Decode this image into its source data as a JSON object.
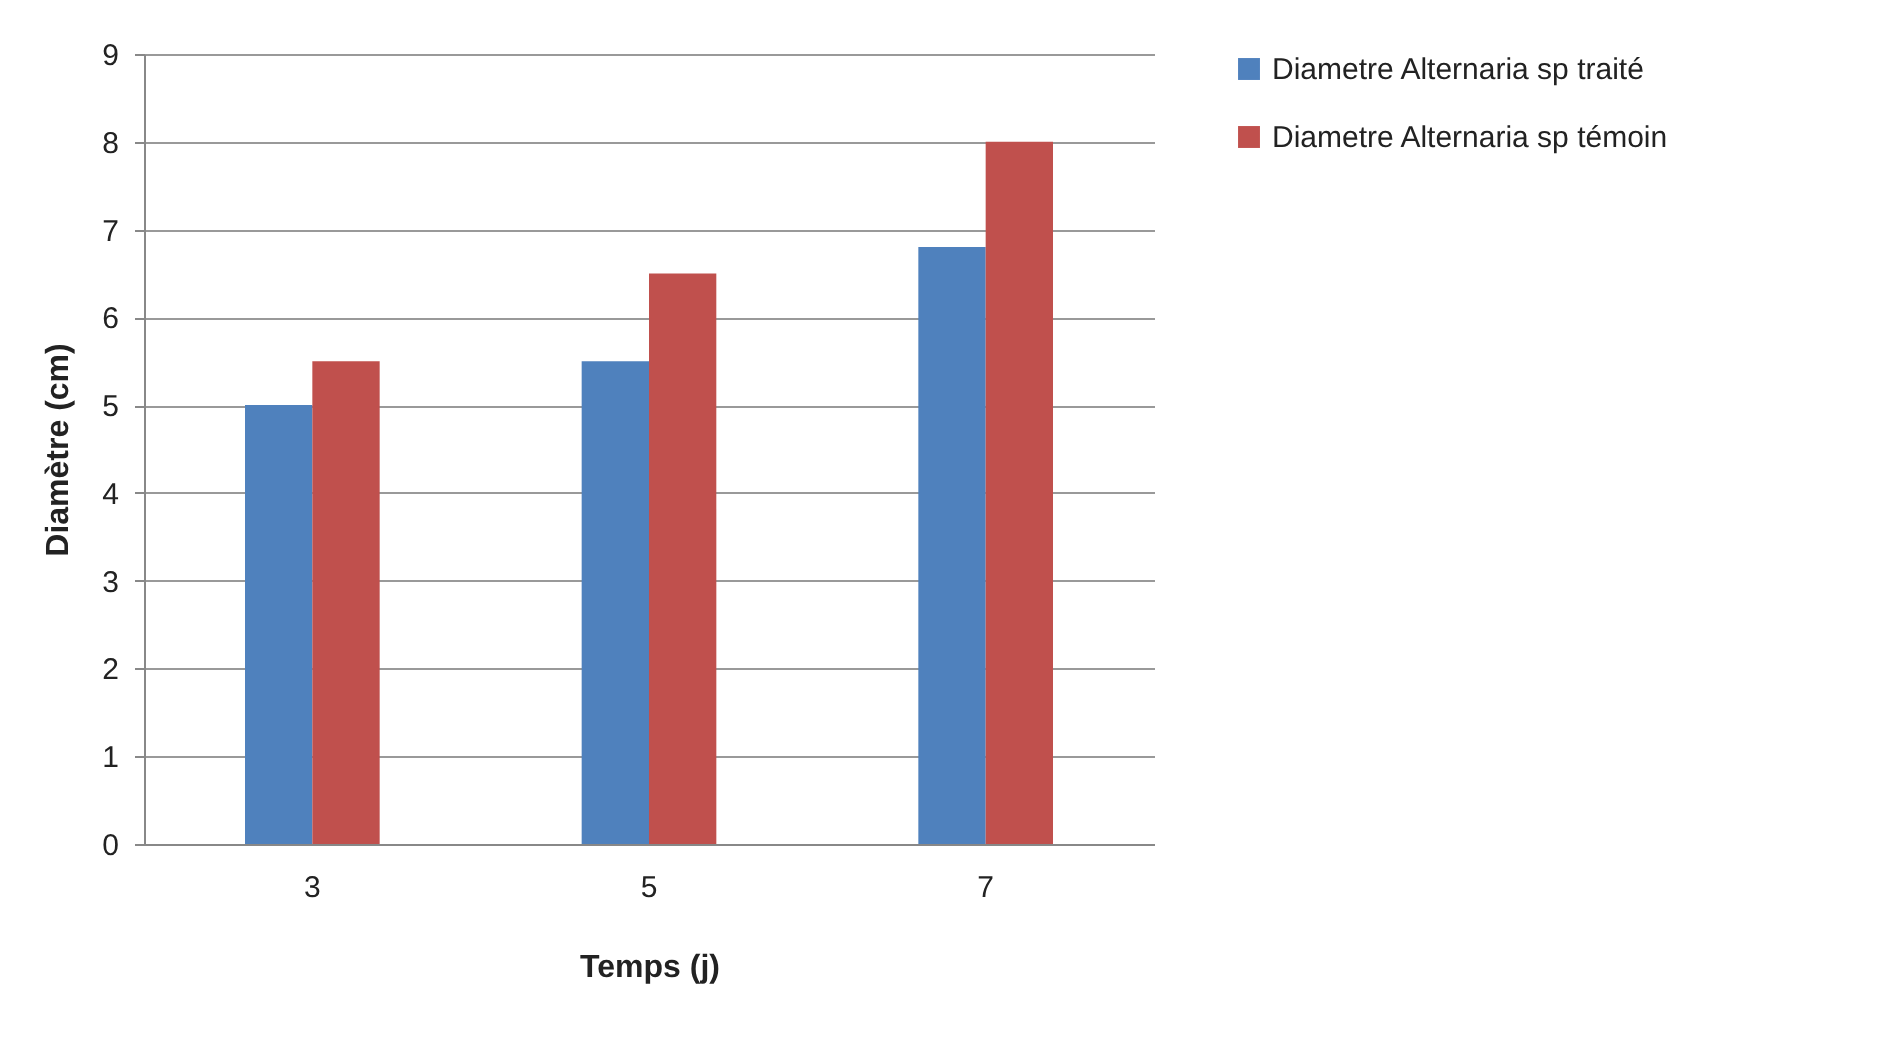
{
  "chart_data": {
    "type": "bar",
    "xlabel": "Temps (j)",
    "ylabel": "Diamètre (cm)",
    "categories": [
      "3",
      "5",
      "7"
    ],
    "series": [
      {
        "name": "Diametre Alternaria sp traité",
        "color": "#4f81bd",
        "values": [
          5,
          5.5,
          6.8
        ]
      },
      {
        "name": "Diametre Alternaria sp témoin",
        "color": "#c0504d",
        "values": [
          5.5,
          6.5,
          8
        ]
      }
    ],
    "ylim": [
      0,
      9
    ],
    "yticks": [
      0,
      1,
      2,
      3,
      4,
      5,
      6,
      7,
      8,
      9
    ],
    "grid": "y",
    "legend": "right"
  }
}
